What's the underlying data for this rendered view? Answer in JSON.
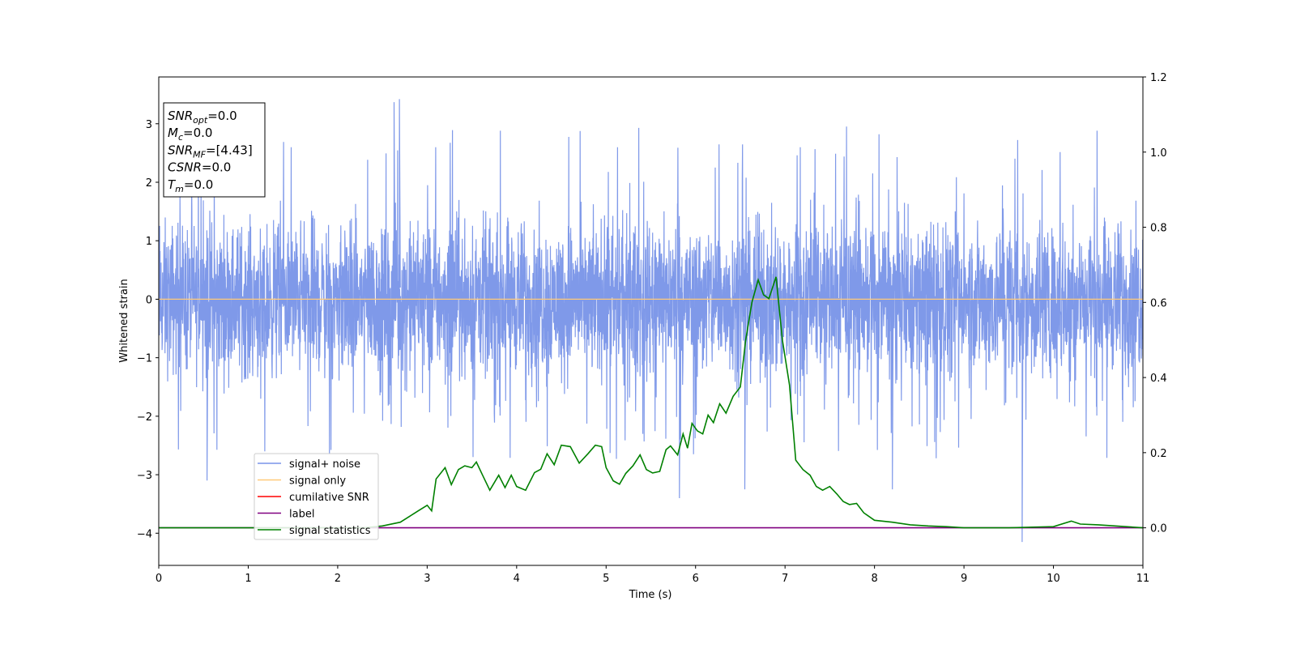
{
  "chart_data": {
    "type": "line",
    "xlabel": "Time (s)",
    "ylabel": "Whitened strain",
    "xlim": [
      0,
      11
    ],
    "ylim": [
      -4.55,
      3.8
    ],
    "y2lim": [
      -0.1,
      1.2
    ],
    "x_ticks": [
      0,
      1,
      2,
      3,
      4,
      5,
      6,
      7,
      8,
      9,
      10,
      11
    ],
    "y_ticks": [
      -4,
      -3,
      -2,
      -1,
      0,
      1,
      2,
      3
    ],
    "y2_ticks": [
      0.0,
      0.2,
      0.4,
      0.6,
      0.8,
      1.0,
      1.2
    ],
    "legend_position": "lower-left",
    "legend": [
      {
        "label": "signal+ noise",
        "color": "#7894e8"
      },
      {
        "label": "signal only",
        "color": "#ffc978"
      },
      {
        "label": "cumilative SNR",
        "color": "#ff0000"
      },
      {
        "label": "label",
        "color": "#800080"
      },
      {
        "label": "signal statistics",
        "color": "#008000"
      }
    ],
    "info_box": [
      {
        "base": "SNR",
        "sub": "opt",
        "value": "=0.0"
      },
      {
        "base": "M",
        "sub": "c",
        "value": "=0.0"
      },
      {
        "base": "SNR",
        "sub": "MF",
        "value": "=[4.43]"
      },
      {
        "base": "CSNR",
        "sub": "",
        "value": "=0.0"
      },
      {
        "base": "T",
        "sub": "m",
        "value": "=0.0"
      }
    ],
    "series": [
      {
        "name": "signal+ noise",
        "axis": "left",
        "color": "#7894e8",
        "noise_band": {
          "x_start": 0,
          "x_end": 11,
          "typical_min": -1.6,
          "typical_max": 1.6,
          "extreme_min": -4.15,
          "extreme_max": 3.42
        }
      },
      {
        "name": "signal only",
        "axis": "left",
        "color": "#ffc978",
        "x": [
          0,
          11
        ],
        "y": [
          0,
          0
        ]
      },
      {
        "name": "label",
        "axis": "right",
        "color": "#800080",
        "x": [
          0,
          11
        ],
        "y": [
          0,
          0
        ]
      },
      {
        "name": "signal statistics",
        "axis": "right",
        "color": "#008000",
        "x": [
          0,
          0.5,
          1.0,
          1.5,
          2.0,
          2.3,
          2.5,
          2.7,
          2.8,
          2.9,
          3.0,
          3.05,
          3.1,
          3.2,
          3.27,
          3.35,
          3.42,
          3.5,
          3.55,
          3.62,
          3.7,
          3.8,
          3.87,
          3.94,
          4.0,
          4.1,
          4.2,
          4.27,
          4.34,
          4.42,
          4.5,
          4.6,
          4.7,
          4.8,
          4.88,
          4.95,
          5.0,
          5.08,
          5.15,
          5.22,
          5.3,
          5.38,
          5.45,
          5.52,
          5.6,
          5.67,
          5.72,
          5.8,
          5.86,
          5.91,
          5.96,
          6.02,
          6.08,
          6.14,
          6.2,
          6.27,
          6.34,
          6.42,
          6.5,
          6.56,
          6.63,
          6.7,
          6.76,
          6.82,
          6.9,
          6.97,
          7.05,
          7.12,
          7.2,
          7.28,
          7.35,
          7.42,
          7.5,
          7.58,
          7.65,
          7.72,
          7.8,
          7.88,
          8.0,
          8.2,
          8.4,
          8.6,
          8.8,
          9.0,
          9.5,
          10.0,
          10.2,
          10.3,
          10.5,
          11.0
        ],
        "y": [
          0.0,
          0.0,
          0.0,
          0.0,
          0.0,
          0.0,
          0.005,
          0.015,
          0.03,
          0.045,
          0.06,
          0.045,
          0.13,
          0.16,
          0.115,
          0.155,
          0.165,
          0.16,
          0.175,
          0.14,
          0.1,
          0.14,
          0.107,
          0.14,
          0.11,
          0.1,
          0.147,
          0.156,
          0.197,
          0.168,
          0.22,
          0.216,
          0.172,
          0.198,
          0.22,
          0.216,
          0.16,
          0.125,
          0.116,
          0.145,
          0.165,
          0.194,
          0.155,
          0.146,
          0.15,
          0.208,
          0.218,
          0.194,
          0.25,
          0.212,
          0.278,
          0.258,
          0.25,
          0.3,
          0.28,
          0.33,
          0.305,
          0.35,
          0.375,
          0.5,
          0.6,
          0.66,
          0.62,
          0.61,
          0.668,
          0.5,
          0.38,
          0.18,
          0.155,
          0.14,
          0.11,
          0.1,
          0.11,
          0.09,
          0.07,
          0.062,
          0.065,
          0.04,
          0.02,
          0.015,
          0.008,
          0.005,
          0.003,
          0.0,
          0.0,
          0.003,
          0.018,
          0.01,
          0.008,
          0.0
        ]
      }
    ]
  }
}
